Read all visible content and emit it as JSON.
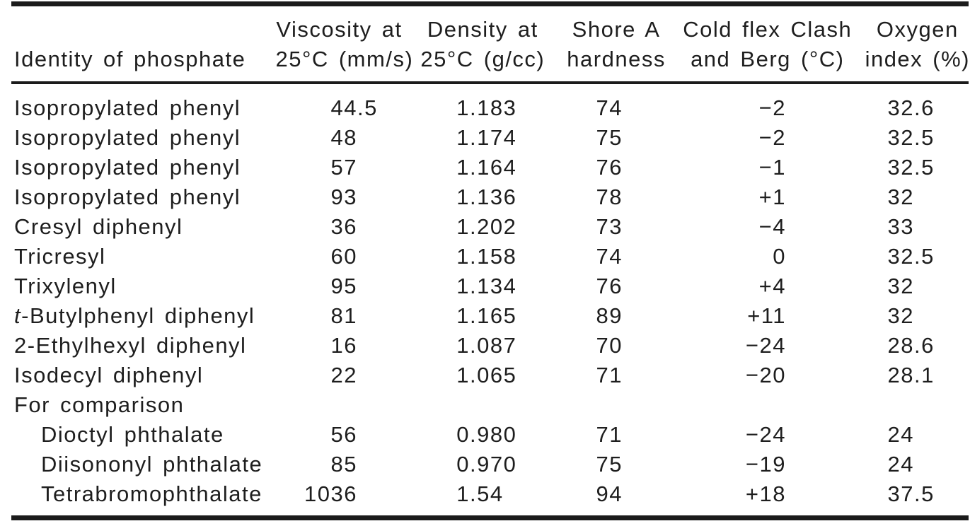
{
  "table": {
    "header": {
      "col1": {
        "line1": "",
        "line2": "Identity of phosphate"
      },
      "col2": {
        "line1": "Viscosity at",
        "line2": "25°C (mm/s)"
      },
      "col3": {
        "line1": "Density at",
        "line2": "25°C (g/cc)"
      },
      "col4": {
        "line1": "Shore A",
        "line2": "hardness"
      },
      "col5": {
        "line1": "Cold flex Clash",
        "line2": "and Berg (°C)"
      },
      "col6": {
        "line1": "Oxygen",
        "line2": "index (%)"
      }
    },
    "rows": [
      {
        "name": "Isopropylated phenyl",
        "viscosity": "44.5",
        "density": "1.183",
        "shore": "74",
        "cold_flex": "−2",
        "oxygen": "32.6"
      },
      {
        "name": "Isopropylated phenyl",
        "viscosity": "48",
        "density": "1.174",
        "shore": "75",
        "cold_flex": "−2",
        "oxygen": "32.5"
      },
      {
        "name": "Isopropylated phenyl",
        "viscosity": "57",
        "density": "1.164",
        "shore": "76",
        "cold_flex": "−1",
        "oxygen": "32.5"
      },
      {
        "name": "Isopropylated phenyl",
        "viscosity": "93",
        "density": "1.136",
        "shore": "78",
        "cold_flex": "+1",
        "oxygen": "32"
      },
      {
        "name": "Cresyl diphenyl",
        "viscosity": "36",
        "density": "1.202",
        "shore": "73",
        "cold_flex": "−4",
        "oxygen": "33"
      },
      {
        "name": "Tricresyl",
        "viscosity": "60",
        "density": "1.158",
        "shore": "74",
        "cold_flex": "0",
        "oxygen": "32.5"
      },
      {
        "name": "Trixylenyl",
        "viscosity": "95",
        "density": "1.134",
        "shore": "76",
        "cold_flex": "+4",
        "oxygen": "32"
      },
      {
        "name": "-Butylphenyl diphenyl",
        "name_italic_prefix": "t",
        "viscosity": "81",
        "density": "1.165",
        "shore": "89",
        "cold_flex": "+11",
        "oxygen": "32"
      },
      {
        "name": "2-Ethylhexyl diphenyl",
        "viscosity": "16",
        "density": "1.087",
        "shore": "70",
        "cold_flex": "−24",
        "oxygen": "28.6"
      },
      {
        "name": "Isodecyl diphenyl",
        "viscosity": "22",
        "density": "1.065",
        "shore": "71",
        "cold_flex": "−20",
        "oxygen": "28.1"
      },
      {
        "name": "For comparison",
        "section": true
      },
      {
        "name": "Dioctyl phthalate",
        "indent": true,
        "viscosity": "56",
        "density": "0.980",
        "shore": "71",
        "cold_flex": "−24",
        "oxygen": "24"
      },
      {
        "name": "Diisononyl phthalate",
        "indent": true,
        "viscosity": "85",
        "density": "0.970",
        "shore": "75",
        "cold_flex": "−19",
        "oxygen": "24"
      },
      {
        "name": "Tetrabromophthalate",
        "indent": true,
        "viscosity": "1036",
        "density": "1.54",
        "shore": "94",
        "cold_flex": "+18",
        "oxygen": "37.5"
      }
    ]
  }
}
